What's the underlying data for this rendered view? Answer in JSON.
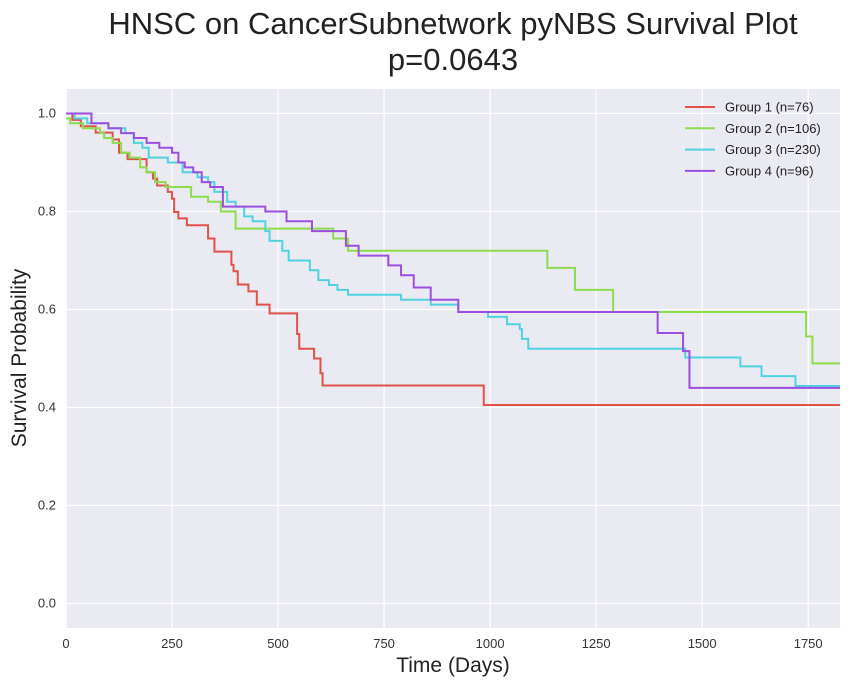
{
  "chart_data": {
    "type": "line",
    "step": true,
    "title_lines": [
      "HNSC on CancerSubnetwork pyNBS Survival Plot",
      "p=0.0643"
    ],
    "xlabel": "Time (Days)",
    "ylabel": "Survival Probability",
    "xlim": [
      0,
      1825
    ],
    "ylim": [
      -0.05,
      1.05
    ],
    "xticks": [
      0,
      250,
      500,
      750,
      1000,
      1250,
      1500,
      1750
    ],
    "yticks": [
      0.0,
      0.2,
      0.4,
      0.6,
      0.8,
      1.0
    ],
    "ytick_labels": [
      "0.0",
      "0.2",
      "0.4",
      "0.6",
      "0.8",
      "1.0"
    ],
    "grid": true,
    "legend_position": "top-right",
    "background": "#eaeaf2",
    "series": [
      {
        "name": "Group 1 (n=76)",
        "color": "#e0524a",
        "x": [
          0,
          15,
          35,
          70,
          110,
          125,
          145,
          190,
          205,
          215,
          240,
          250,
          255,
          265,
          285,
          335,
          350,
          370,
          390,
          395,
          405,
          430,
          450,
          480,
          545,
          550,
          585,
          600,
          605,
          985,
          1825
        ],
        "y": [
          1.0,
          0.987,
          0.974,
          0.961,
          0.947,
          0.92,
          0.907,
          0.88,
          0.867,
          0.853,
          0.84,
          0.826,
          0.799,
          0.786,
          0.772,
          0.745,
          0.718,
          0.718,
          0.691,
          0.678,
          0.651,
          0.637,
          0.61,
          0.592,
          0.55,
          0.52,
          0.5,
          0.47,
          0.445,
          0.405,
          0.405
        ]
      },
      {
        "name": "Group 2 (n=106)",
        "color": "#8ddc4e",
        "x": [
          0,
          10,
          40,
          80,
          90,
          110,
          130,
          150,
          175,
          190,
          210,
          225,
          235,
          275,
          295,
          335,
          365,
          400,
          630,
          665,
          690,
          1135,
          1200,
          1290,
          1745,
          1760,
          1825
        ],
        "y": [
          0.99,
          0.98,
          0.97,
          0.96,
          0.95,
          0.94,
          0.92,
          0.91,
          0.89,
          0.88,
          0.86,
          0.86,
          0.85,
          0.85,
          0.83,
          0.82,
          0.8,
          0.765,
          0.745,
          0.72,
          0.72,
          0.685,
          0.64,
          0.595,
          0.545,
          0.49,
          0.49
        ]
      },
      {
        "name": "Group 3 (n=230)",
        "color": "#4fd3e0",
        "x": [
          0,
          20,
          50,
          100,
          140,
          160,
          180,
          195,
          240,
          275,
          310,
          335,
          350,
          380,
          400,
          420,
          440,
          470,
          480,
          510,
          525,
          575,
          595,
          620,
          640,
          665,
          730,
          790,
          860,
          925,
          995,
          1040,
          1070,
          1075,
          1090,
          1460,
          1590,
          1640,
          1720,
          1825
        ],
        "y": [
          1.0,
          0.99,
          0.98,
          0.97,
          0.96,
          0.94,
          0.93,
          0.91,
          0.9,
          0.88,
          0.87,
          0.86,
          0.84,
          0.82,
          0.81,
          0.79,
          0.78,
          0.76,
          0.74,
          0.72,
          0.7,
          0.68,
          0.66,
          0.65,
          0.64,
          0.63,
          0.63,
          0.62,
          0.61,
          0.595,
          0.585,
          0.57,
          0.56,
          0.54,
          0.52,
          0.502,
          0.484,
          0.464,
          0.444,
          0.444
        ]
      },
      {
        "name": "Group 4 (n=96)",
        "color": "#9b4fe0",
        "x": [
          0,
          60,
          100,
          130,
          160,
          190,
          220,
          250,
          265,
          280,
          300,
          320,
          340,
          370,
          470,
          520,
          580,
          660,
          690,
          760,
          790,
          820,
          860,
          925,
          1395,
          1455,
          1470,
          1825
        ],
        "y": [
          1.0,
          0.98,
          0.97,
          0.96,
          0.95,
          0.94,
          0.93,
          0.92,
          0.9,
          0.89,
          0.88,
          0.86,
          0.85,
          0.81,
          0.8,
          0.78,
          0.76,
          0.73,
          0.71,
          0.69,
          0.67,
          0.645,
          0.62,
          0.595,
          0.552,
          0.515,
          0.44,
          0.44
        ]
      }
    ]
  }
}
